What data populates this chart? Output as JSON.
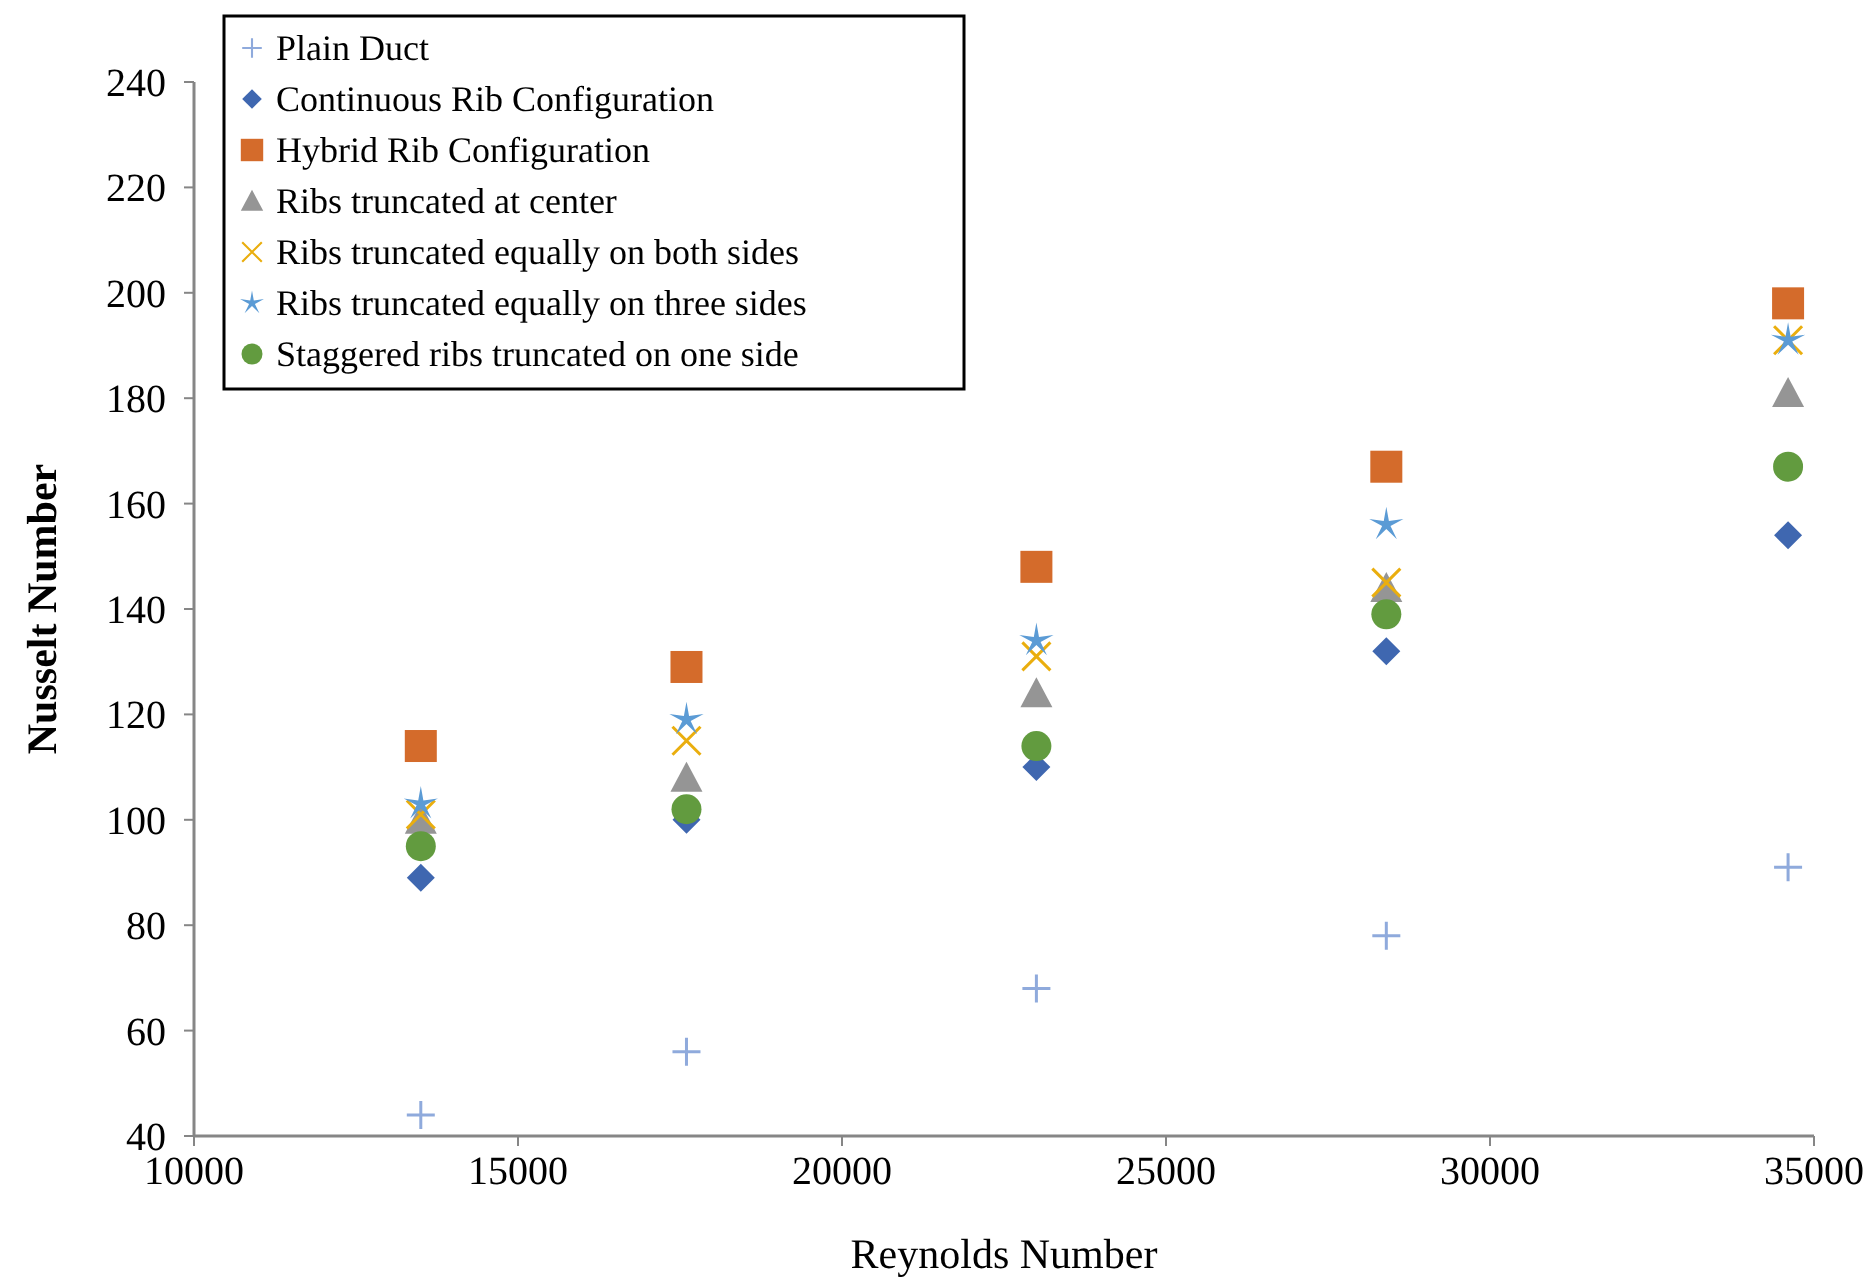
{
  "chart_data": {
    "type": "scatter",
    "xlabel": "Reynolds Number",
    "ylabel": "Nusselt Number",
    "xlim": [
      10000,
      35000
    ],
    "xticks": [
      10000,
      15000,
      20000,
      25000,
      30000,
      35000
    ],
    "ylim": [
      40,
      240
    ],
    "yticks": [
      40,
      60,
      80,
      100,
      120,
      140,
      160,
      180,
      200,
      220,
      240
    ],
    "grid": false,
    "legend": "top left",
    "x": [
      13500,
      17600,
      23000,
      28400,
      34600
    ],
    "series": [
      {
        "name": "Plain Duct",
        "color": "#8faadc",
        "marker": "plus",
        "values": [
          44,
          56,
          68,
          78,
          91
        ]
      },
      {
        "name": "Continuous Rib Configuration",
        "color": "#3f67b0",
        "marker": "diamond",
        "values": [
          89,
          100,
          110,
          132,
          154
        ]
      },
      {
        "name": "Hybrid Rib Configuration",
        "color": "#d46b2b",
        "marker": "square",
        "values": [
          114,
          129,
          148,
          167,
          198
        ]
      },
      {
        "name": "Ribs truncated at center",
        "color": "#959595",
        "marker": "triangle",
        "values": [
          100,
          108,
          124,
          144,
          181
        ]
      },
      {
        "name": "Ribs truncated equally on both sides",
        "color": "#eaae0e",
        "marker": "cross",
        "values": [
          101,
          115,
          131,
          145,
          191
        ]
      },
      {
        "name": "Ribs truncated equally on three sides",
        "color": "#5b9bd5",
        "marker": "star",
        "values": [
          103,
          119,
          134,
          156,
          191
        ]
      },
      {
        "name": "Staggered ribs truncated on one side",
        "color": "#629b3f",
        "marker": "circle",
        "values": [
          95,
          102,
          114,
          139,
          167
        ]
      }
    ]
  }
}
